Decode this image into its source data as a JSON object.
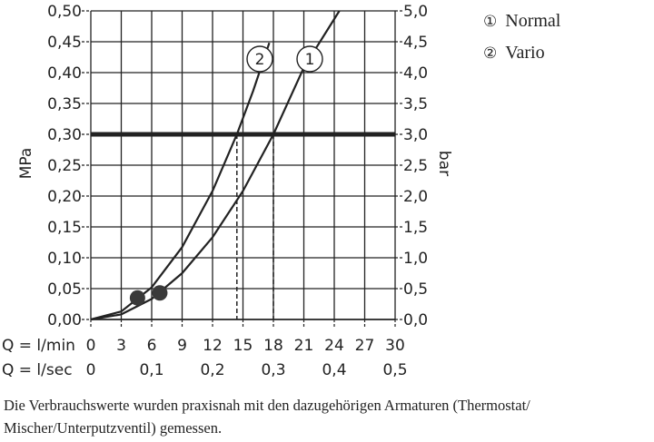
{
  "chart_data": {
    "type": "line",
    "y_left_label": "MPa",
    "y_right_label": "bar",
    "y_left_ticks": [
      "0,00",
      "0,05",
      "0,10",
      "0,15",
      "0,20",
      "0,25",
      "0,30",
      "0,35",
      "0,40",
      "0,45",
      "0,50"
    ],
    "y_right_ticks": [
      "0,0",
      "0,5",
      "1,0",
      "1,5",
      "2,0",
      "2,5",
      "3,0",
      "3,5",
      "4,0",
      "4,5",
      "5,0"
    ],
    "ylim": [
      0,
      0.5
    ],
    "x_label_min": "Q = l/min",
    "x_ticks_min": [
      "0",
      "3",
      "6",
      "9",
      "12",
      "15",
      "18",
      "21",
      "24",
      "27",
      "30"
    ],
    "xlim": [
      0,
      30
    ],
    "x_label_sec": "Q = l/sec",
    "x_ticks_sec": [
      {
        "label": "0",
        "x": 0
      },
      {
        "label": "0,1",
        "x": 6
      },
      {
        "label": "0,2",
        "x": 12
      },
      {
        "label": "0,3",
        "x": 18
      },
      {
        "label": "0,4",
        "x": 24
      },
      {
        "label": "0,5",
        "x": 30
      }
    ],
    "reference_pressure": 0.3,
    "series": [
      {
        "marker": "1",
        "name": "Normal",
        "x": [
          0,
          3,
          6,
          9,
          12,
          15,
          18,
          21,
          24.5
        ],
        "y": [
          0,
          0.0083,
          0.0333,
          0.075,
          0.1333,
          0.2083,
          0.3,
          0.4083,
          0.5
        ],
        "intersection_x": 18,
        "dot": [
          6.8,
          0.043
        ]
      },
      {
        "marker": "2",
        "name": "Vario",
        "x": [
          0,
          3,
          6,
          9,
          12,
          14.4,
          16,
          17.6
        ],
        "y": [
          0,
          0.013,
          0.0521,
          0.1172,
          0.2083,
          0.3,
          0.3704,
          0.4482
        ],
        "intersection_x": 14.4,
        "dot": [
          4.6,
          0.035
        ]
      }
    ]
  },
  "legend": [
    {
      "marker": "①",
      "name": "Normal"
    },
    {
      "marker": "②",
      "name": "Vario"
    }
  ],
  "caption": "Die Verbrauchswerte wurden praxisnah mit den dazugehörigen Armaturen (Thermostat/ Mischer/Unterputzventil) gemessen."
}
